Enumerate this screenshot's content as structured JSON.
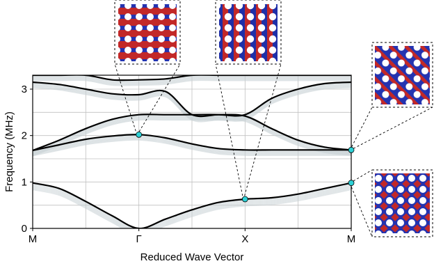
{
  "chart_data": {
    "type": "line",
    "title": "",
    "xlabel": "Reduced Wave Vector",
    "ylabel": "Frequency (MHz)",
    "x_tick_labels": [
      "M",
      "Γ",
      "X",
      "M"
    ],
    "x_ticks": [
      0,
      1,
      2,
      3
    ],
    "y_ticks": [
      0,
      1,
      2,
      3
    ],
    "y_tick_labels": [
      "0",
      "1",
      "2",
      "3"
    ],
    "xlim": [
      0,
      3
    ],
    "ylim": [
      0,
      3.3
    ],
    "grid": true,
    "series": [
      {
        "x": [
          0,
          0.25,
          0.5,
          0.75,
          1,
          1.25,
          1.5,
          1.75,
          2,
          2.25,
          2.5,
          2.75,
          3
        ],
        "values": [
          0.98,
          0.86,
          0.58,
          0.27,
          0.0,
          0.2,
          0.4,
          0.56,
          0.63,
          0.66,
          0.74,
          0.86,
          0.98
        ]
      },
      {
        "x": [
          0,
          0.25,
          0.5,
          0.75,
          1,
          1.25,
          1.5,
          1.75,
          2,
          2.25,
          2.5,
          2.75,
          3
        ],
        "values": [
          1.68,
          1.8,
          1.92,
          1.99,
          2.02,
          1.95,
          1.82,
          1.72,
          1.69,
          1.69,
          1.69,
          1.69,
          1.69
        ]
      },
      {
        "x": [
          0,
          0.25,
          0.5,
          0.75,
          1,
          1.25,
          1.5,
          1.75,
          2,
          2.25,
          2.5,
          2.75,
          3
        ],
        "values": [
          1.68,
          1.9,
          2.15,
          2.35,
          2.45,
          2.45,
          2.45,
          2.45,
          2.42,
          2.15,
          1.9,
          1.75,
          1.69
        ]
      },
      {
        "x": [
          0,
          0.25,
          0.5,
          0.75,
          1,
          1.25,
          1.5,
          1.75,
          2,
          2.25,
          2.5,
          2.75,
          3
        ],
        "values": [
          3.15,
          3.1,
          3.0,
          2.9,
          2.88,
          2.95,
          2.45,
          2.45,
          2.45,
          2.8,
          3.0,
          3.12,
          3.15
        ]
      },
      {
        "x": [
          0,
          0.25,
          0.5,
          0.75,
          1,
          1.25,
          1.5,
          1.75,
          2,
          2.25,
          2.5,
          2.75,
          3
        ],
        "values": [
          3.3,
          3.3,
          3.3,
          3.2,
          3.2,
          3.22,
          3.3,
          3.3,
          3.3,
          3.3,
          3.3,
          3.3,
          3.3
        ]
      }
    ],
    "highlighted_points": [
      {
        "x": 1,
        "y": 2.02
      },
      {
        "x": 2,
        "y": 0.63
      },
      {
        "x": 3,
        "y": 1.69
      },
      {
        "x": 3,
        "y": 0.98
      }
    ],
    "inset_count": 4,
    "colors": {
      "band_line": "#000000",
      "band_shadow": "#c9d1d6",
      "marker_fill": "#2ed1d6",
      "mode_red": "#b81f1f",
      "mode_blue": "#1f2fa8",
      "grid": "#c0c0c0"
    }
  }
}
